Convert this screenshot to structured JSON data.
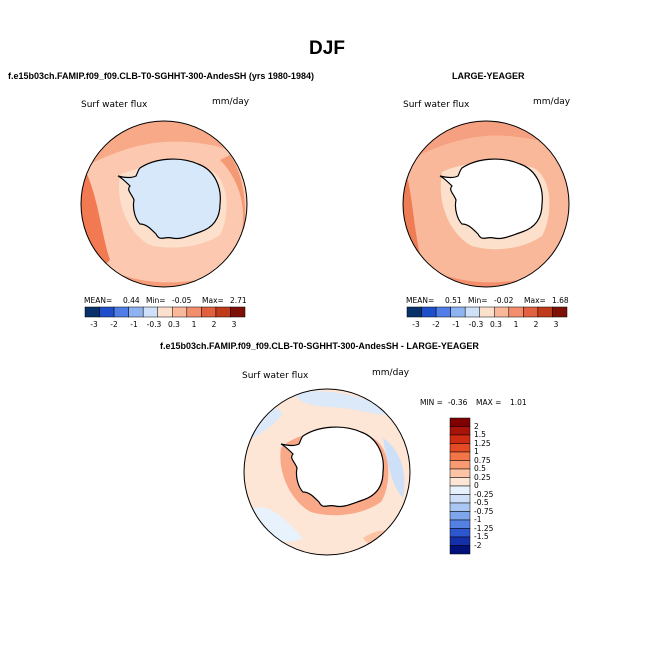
{
  "page_title": "DJF",
  "colors": {
    "land": "#ffffff",
    "ice_land_panel1": "#d6e8fa",
    "coast": "#000000"
  },
  "panels": [
    {
      "caption": "f.e15b03ch.FAMIP.f09_f09.CLB-T0-SGHHT-300-AndesSH (yrs 1980-1984)",
      "variable": "Surf water flux",
      "units": "mm/day",
      "stats": {
        "mean_label": "MEAN=",
        "mean": "0.44",
        "min_label": "Min=",
        "min": "-0.05",
        "max_label": "Max=",
        "max": "2.71"
      },
      "colorbar_ticks": [
        "-3",
        "-2",
        "-1",
        "-0.3",
        "0.3",
        "1",
        "2",
        "3"
      ]
    },
    {
      "caption": "LARGE-YEAGER",
      "variable": "Surf water flux",
      "units": "mm/day",
      "stats": {
        "mean_label": "MEAN=",
        "mean": "0.51",
        "min_label": "Min=",
        "min": "-0.02",
        "max_label": "Max=",
        "max": "1.68"
      },
      "colorbar_ticks": [
        "-3",
        "-2",
        "-1",
        "-0.3",
        "0.3",
        "1",
        "2",
        "3"
      ]
    }
  ],
  "diff_panel": {
    "caption": "f.e15b03ch.FAMIP.f09_f09.CLB-T0-SGHHT-300-AndesSH - LARGE-YEAGER",
    "variable": "Surf water flux",
    "units": "mm/day",
    "min_label": "MIN =",
    "min": "-0.36",
    "max_label": "MAX =",
    "max": "1.01",
    "colorbar_labels": [
      "2",
      "1.5",
      "1.25",
      "1",
      "0.75",
      "0.5",
      "0.25",
      "0",
      "-0.25",
      "-0.5",
      "-0.75",
      "-1",
      "-1.25",
      "-1.5",
      "-2"
    ]
  },
  "scale_colors": {
    "model": [
      "#08306b",
      "#1f4fc8",
      "#4f7ee8",
      "#8fb2f0",
      "#cfe1f8",
      "#fde0cc",
      "#f9b89a",
      "#f28e6c",
      "#e2603f",
      "#c23a1c",
      "#7f1008"
    ],
    "diff": [
      "#7f0000",
      "#a8140a",
      "#cf2a12",
      "#e44a24",
      "#f27447",
      "#f99a72",
      "#fcc3a4",
      "#fee6d6",
      "#e8f2fc",
      "#cde0f8",
      "#a9c7f2",
      "#7ea6ec",
      "#5581e2",
      "#2d57cf",
      "#1430a8",
      "#00127a"
    ]
  }
}
